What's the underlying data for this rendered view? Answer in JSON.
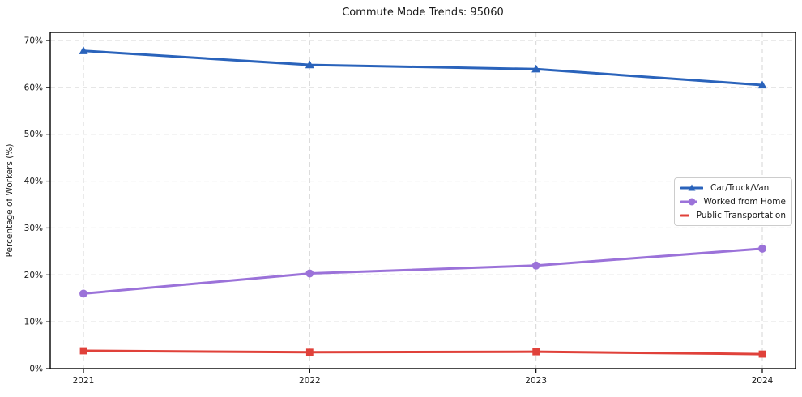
{
  "figure": {
    "background": "#ffffff",
    "grid_color": "#d6d6d6",
    "spine_color": "#000000",
    "text_color": "#1a1a1a"
  },
  "chart_data": {
    "type": "line",
    "title": "Commute Mode Trends: 95060",
    "xlabel": "",
    "ylabel": "Percentage of Workers (%)",
    "x": [
      2021,
      2022,
      2023,
      2024
    ],
    "x_tick_labels": [
      "2021",
      "2022",
      "2023",
      "2024"
    ],
    "y_tick_labels": [
      "0%",
      "10%",
      "20%",
      "30%",
      "40%",
      "50%",
      "60%",
      "70%"
    ],
    "ylim": [
      0,
      70
    ],
    "y_tick_step": 10,
    "grid": true,
    "grid_style": "dashed",
    "legend_position": "center-right",
    "series": [
      {
        "name": "Car/Truck/Van",
        "color": "#2a63bb",
        "marker": "triangle-up",
        "values": [
          67.8,
          64.8,
          63.9,
          60.5
        ]
      },
      {
        "name": "Worked from Home",
        "color": "#9b72d9",
        "marker": "circle",
        "values": [
          16.0,
          20.3,
          22.0,
          25.6
        ]
      },
      {
        "name": "Public Transportation",
        "color": "#e0413a",
        "marker": "square",
        "values": [
          3.8,
          3.5,
          3.6,
          3.1
        ]
      }
    ]
  }
}
